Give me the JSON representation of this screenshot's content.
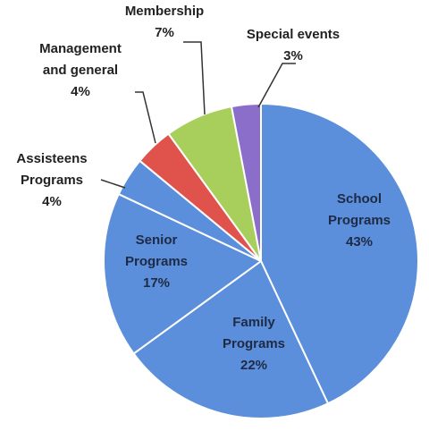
{
  "chart_data": {
    "type": "pie",
    "slices": [
      {
        "label": [
          "School",
          "Programs"
        ],
        "pct_label": "43%",
        "value": 43,
        "color": "#5b8fdb"
      },
      {
        "label": [
          "Family",
          "Programs"
        ],
        "pct_label": "22%",
        "value": 22,
        "color": "#5b8fdb"
      },
      {
        "label": [
          "Senior",
          "Programs"
        ],
        "pct_label": "17%",
        "value": 17,
        "color": "#5b8fdb"
      },
      {
        "label": [
          "Assisteens",
          "Programs"
        ],
        "pct_label": "4%",
        "value": 4,
        "color": "#5b8fdb"
      },
      {
        "label": [
          "Management",
          "and general"
        ],
        "pct_label": "4%",
        "value": 4,
        "color": "#e0534d"
      },
      {
        "label": [
          "Membership"
        ],
        "pct_label": "7%",
        "value": 7,
        "color": "#a8cf5b"
      },
      {
        "label": [
          "Special events"
        ],
        "pct_label": "3%",
        "value": 3,
        "color": "#8a6ec9"
      }
    ],
    "start_slice": "School Programs",
    "legend": "none",
    "data_labels": "category-and-percent"
  },
  "colors": {
    "edge": "#ffffff",
    "leader_line": "#333333"
  }
}
